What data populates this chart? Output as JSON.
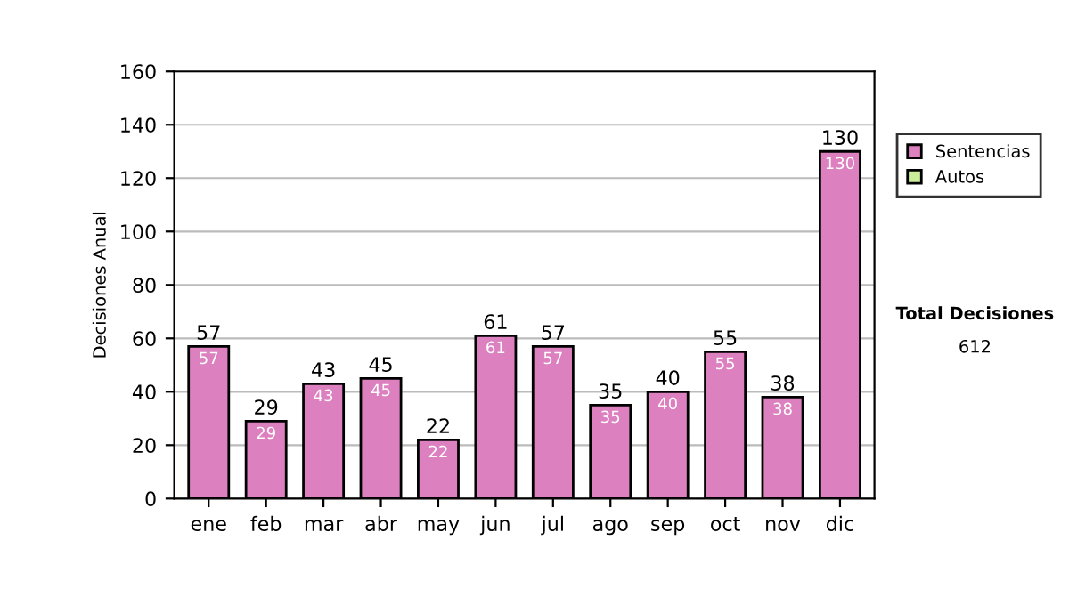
{
  "chart_data": {
    "type": "bar",
    "stacked": true,
    "ylabel": "Decisiones Anual",
    "categories": [
      "ene",
      "feb",
      "mar",
      "abr",
      "may",
      "jun",
      "jul",
      "ago",
      "sep",
      "oct",
      "nov",
      "dic"
    ],
    "series": [
      {
        "name": "Sentencias",
        "color": "#dd80c0",
        "values": [
          57,
          29,
          43,
          45,
          22,
          61,
          57,
          35,
          40,
          55,
          38,
          130
        ],
        "value_labels": [
          "57",
          "29",
          "43",
          "45",
          "22",
          "61",
          "57",
          "35",
          "40",
          "55",
          "38",
          "130"
        ]
      },
      {
        "name": "Autos",
        "color": "#ccee99",
        "values": [
          null,
          null,
          null,
          null,
          null,
          null,
          null,
          null,
          null,
          null,
          null,
          null
        ]
      }
    ],
    "totals": [
      "57",
      "29",
      "43",
      "45",
      "22",
      "61",
      "57",
      "35",
      "40",
      "55",
      "38",
      "130"
    ],
    "ylim": [
      0,
      160
    ],
    "yticks": [
      0,
      20,
      40,
      60,
      80,
      100,
      120,
      140,
      160
    ],
    "grid": "y",
    "legend": "right",
    "annotations": [
      "Total Decisiones",
      "612"
    ]
  }
}
